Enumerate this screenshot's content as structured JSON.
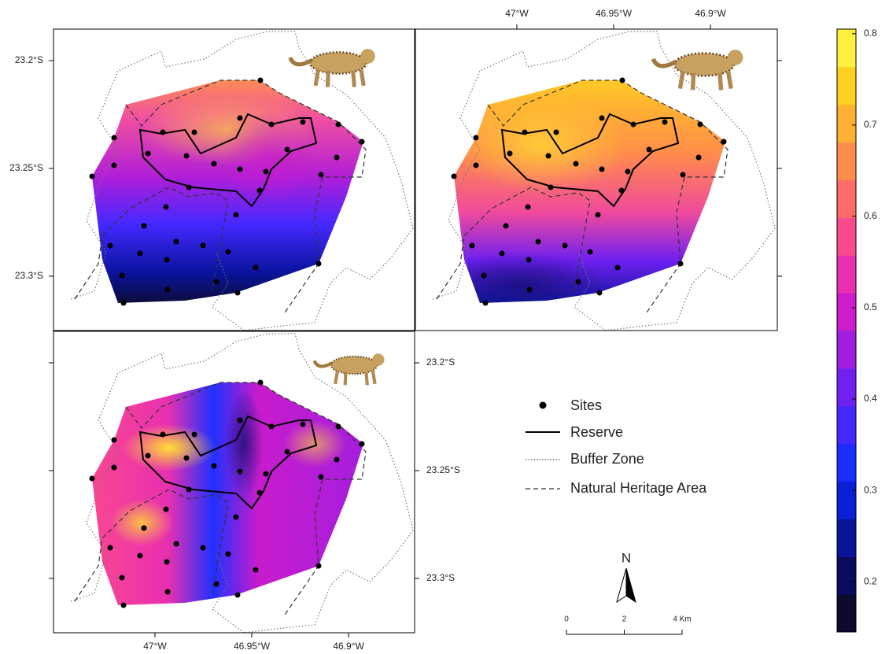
{
  "map": {
    "lon_lim": [
      -47.0524,
      -46.8659
    ],
    "lat_lim": [
      -23.3252,
      -23.1854
    ],
    "lon_ticks": [
      {
        "value": -47,
        "label": "47°W"
      },
      {
        "value": -46.95,
        "label": "46.95°W"
      },
      {
        "value": -46.9,
        "label": "46.9°W"
      }
    ],
    "lat_ticks": [
      {
        "value": -23.2,
        "label": "23.2°S"
      },
      {
        "value": -23.25,
        "label": "23.25°S"
      },
      {
        "value": -23.3,
        "label": "23.3°S"
      }
    ]
  },
  "legend": {
    "items": [
      "Sites",
      "Reserve",
      "Buffer Zone",
      "Natural Heritage Area"
    ]
  },
  "north": "N",
  "scale_bar": {
    "lim": [
      0,
      4
    ],
    "ticks": [
      0,
      2,
      {
        "value": 4,
        "label": "4 Km"
      }
    ]
  },
  "colorbar": {
    "lim": [
      0.145,
      0.805
    ],
    "ticks": [
      0.2,
      0.3,
      0.4,
      0.5,
      0.6,
      0.7,
      0.8
    ],
    "colors": [
      "#0d0a2e",
      "#0a0a5e",
      "#0a1499",
      "#0a1fd6",
      "#1a2cff",
      "#4428ff",
      "#7020f0",
      "#a01ee0",
      "#cc1ccc",
      "#e830b0",
      "#fb4a8c",
      "#ff6a6a",
      "#ff8c4a",
      "#ffb030",
      "#ffd020",
      "#fff040"
    ]
  }
}
